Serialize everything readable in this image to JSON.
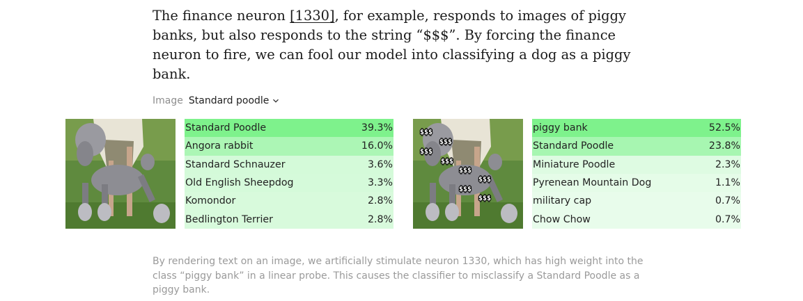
{
  "intro": {
    "before": "The finance neuron ",
    "ref": "[1330]",
    "after": ", for example, responds to images of piggy banks, but also responds to the string “$$$”. By forcing the finance neuron to fire, we can fool our model into classifying a dog as a piggy bank."
  },
  "selector": {
    "label": "Image",
    "value": "Standard poodle"
  },
  "original": {
    "rows": [
      {
        "label": "Standard Poodle",
        "pct": "39.3%",
        "value": 39.3
      },
      {
        "label": "Angora rabbit",
        "pct": "16.0%",
        "value": 16.0
      },
      {
        "label": "Standard Schnauzer",
        "pct": "3.6%",
        "value": 3.6
      },
      {
        "label": "Old English Sheepdog",
        "pct": "3.3%",
        "value": 3.3
      },
      {
        "label": "Komondor",
        "pct": "2.8%",
        "value": 2.8
      },
      {
        "label": "Bedlington Terrier",
        "pct": "2.8%",
        "value": 2.8
      }
    ]
  },
  "attacked": {
    "overlay_text": "$$$",
    "rows": [
      {
        "label": "piggy bank",
        "pct": "52.5%",
        "value": 52.5
      },
      {
        "label": "Standard Poodle",
        "pct": "23.8%",
        "value": 23.8
      },
      {
        "label": "Miniature Poodle",
        "pct": "2.3%",
        "value": 2.3
      },
      {
        "label": "Pyrenean Mountain Dog",
        "pct": "1.1%",
        "value": 1.1
      },
      {
        "label": "military cap",
        "pct": "0.7%",
        "value": 0.7
      },
      {
        "label": "Chow Chow",
        "pct": "0.7%",
        "value": 0.7
      }
    ]
  },
  "caption": "By rendering text on an image, we artificially stimulate neuron 1330, which has high weight into the class “piggy bank” in a linear probe. This causes the classifier to misclassify a Standard Poodle as a piggy bank.",
  "colors": {
    "bar_max": "#7ef28c",
    "bar_min": "#f3fdf5"
  }
}
